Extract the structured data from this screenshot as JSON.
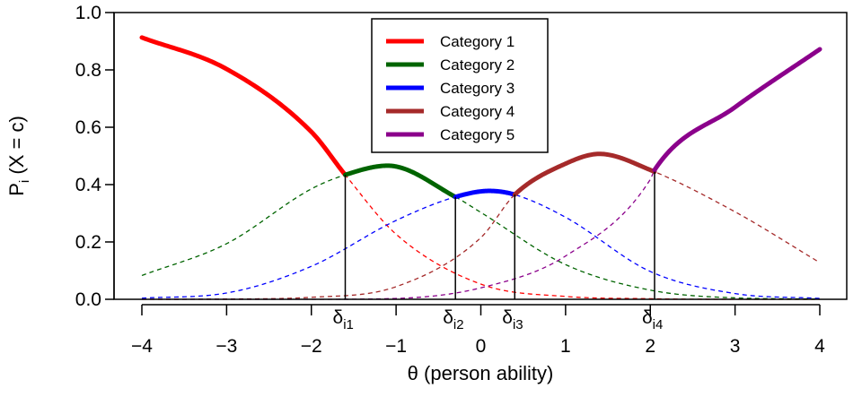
{
  "chart_data": {
    "type": "line",
    "title": "",
    "xlabel": "θ (person ability)",
    "ylabel_main": "P",
    "ylabel_sub": "i",
    "ylabel_rest": " (X = c)",
    "xlim": [
      -4,
      4
    ],
    "ylim": [
      0,
      1
    ],
    "x_ticks": [
      "−4",
      "−3",
      "−2",
      "−1",
      "0",
      "1",
      "2",
      "3",
      "4"
    ],
    "x_tick_values": [
      -4,
      -3,
      -2,
      -1,
      0,
      1,
      2,
      3,
      4
    ],
    "y_ticks": [
      "0.0",
      "0.2",
      "0.4",
      "0.6",
      "0.8",
      "1.0"
    ],
    "y_tick_values": [
      0,
      0.2,
      0.4,
      0.6,
      0.8,
      1.0
    ],
    "grid": false,
    "legend_position": "top-center",
    "model": "partial-credit",
    "thresholds": [
      {
        "symbol": "δ",
        "sub": "i1",
        "value": -1.6
      },
      {
        "symbol": "δ",
        "sub": "i2",
        "value": -0.3
      },
      {
        "symbol": "δ",
        "sub": "i3",
        "value": 0.4
      },
      {
        "symbol": "δ",
        "sub": "i4",
        "value": 2.05
      }
    ],
    "series": [
      {
        "name": "Category 1",
        "color": "#ff0000",
        "points": [
          [
            -4,
            0.913
          ],
          [
            -3,
            0.803
          ],
          [
            -2,
            0.584
          ],
          [
            -1.6,
            0.434
          ],
          [
            -1,
            0.227
          ],
          [
            0,
            0.053
          ],
          [
            1,
            0.01
          ],
          [
            2,
            0.002
          ],
          [
            3,
            0.0
          ],
          [
            4,
            0.0
          ]
        ]
      },
      {
        "name": "Category 2",
        "color": "#006400",
        "points": [
          [
            -4,
            0.083
          ],
          [
            -3,
            0.194
          ],
          [
            -2,
            0.385
          ],
          [
            -1.6,
            0.434
          ],
          [
            -1.1,
            0.466
          ],
          [
            -0.3,
            0.357
          ],
          [
            0,
            0.303
          ],
          [
            1,
            0.121
          ],
          [
            2,
            0.032
          ],
          [
            3,
            0.005
          ],
          [
            4,
            0.001
          ]
        ]
      },
      {
        "name": "Category 3",
        "color": "#0000ff",
        "points": [
          [
            -4,
            0.004
          ],
          [
            -3,
            0.022
          ],
          [
            -2,
            0.115
          ],
          [
            -1,
            0.275
          ],
          [
            -0.3,
            0.357
          ],
          [
            0.1,
            0.378
          ],
          [
            0.4,
            0.365
          ],
          [
            1,
            0.286
          ],
          [
            2,
            0.097
          ],
          [
            3,
            0.02
          ],
          [
            4,
            0.003
          ]
        ]
      },
      {
        "name": "Category 4",
        "color": "#a52a2a",
        "points": [
          [
            -4,
            0.0
          ],
          [
            -3,
            0.001
          ],
          [
            -2,
            0.007
          ],
          [
            -1,
            0.044
          ],
          [
            0,
            0.215
          ],
          [
            0.4,
            0.365
          ],
          [
            1,
            0.473
          ],
          [
            1.4,
            0.507
          ],
          [
            2,
            0.451
          ],
          [
            3,
            0.305
          ],
          [
            4,
            0.128
          ]
        ]
      },
      {
        "name": "Category 5",
        "color": "#8b008b",
        "points": [
          [
            -4,
            0.0
          ],
          [
            -3,
            0.0
          ],
          [
            -2,
            0.0
          ],
          [
            -1,
            0.003
          ],
          [
            0,
            0.04
          ],
          [
            1,
            0.151
          ],
          [
            2,
            0.418
          ],
          [
            2.05,
            0.451
          ],
          [
            3,
            0.67
          ],
          [
            4,
            0.872
          ]
        ]
      }
    ]
  }
}
